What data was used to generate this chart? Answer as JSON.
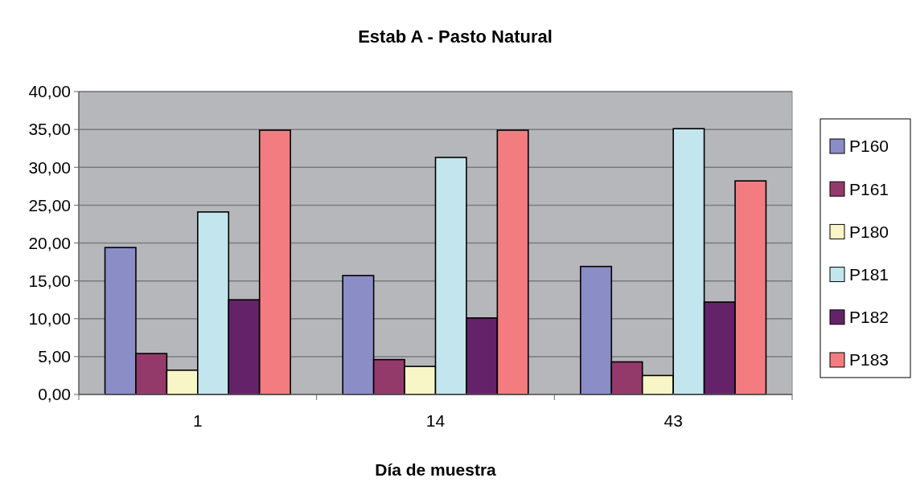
{
  "chart_data": {
    "type": "bar",
    "title": "Estab A - Pasto Natural",
    "xlabel": "Día de muestra",
    "categories": [
      "1",
      "14",
      "43"
    ],
    "series": [
      {
        "name": "P160",
        "color": "#8b8dc7",
        "values": [
          19.4,
          15.7,
          16.9
        ]
      },
      {
        "name": "P161",
        "color": "#943a6b",
        "values": [
          5.4,
          4.6,
          4.3
        ]
      },
      {
        "name": "P180",
        "color": "#f8f6c6",
        "values": [
          3.2,
          3.7,
          2.5
        ]
      },
      {
        "name": "P181",
        "color": "#c3e6ee",
        "values": [
          24.1,
          31.3,
          35.1
        ]
      },
      {
        "name": "P182",
        "color": "#642368",
        "values": [
          12.5,
          10.1,
          12.2
        ]
      },
      {
        "name": "P183",
        "color": "#f37c80",
        "values": [
          34.9,
          34.9,
          28.2
        ]
      }
    ],
    "ylim": [
      0,
      40
    ],
    "yticks": [
      {
        "value": 0,
        "label": "0,00"
      },
      {
        "value": 5,
        "label": "5,00"
      },
      {
        "value": 10,
        "label": "10,00"
      },
      {
        "value": 15,
        "label": "15,00"
      },
      {
        "value": 20,
        "label": "20,00"
      },
      {
        "value": 25,
        "label": "25,00"
      },
      {
        "value": 30,
        "label": "30,00"
      },
      {
        "value": 35,
        "label": "35,00"
      },
      {
        "value": 40,
        "label": "40,00"
      }
    ],
    "grid": "y",
    "legend": "right"
  }
}
